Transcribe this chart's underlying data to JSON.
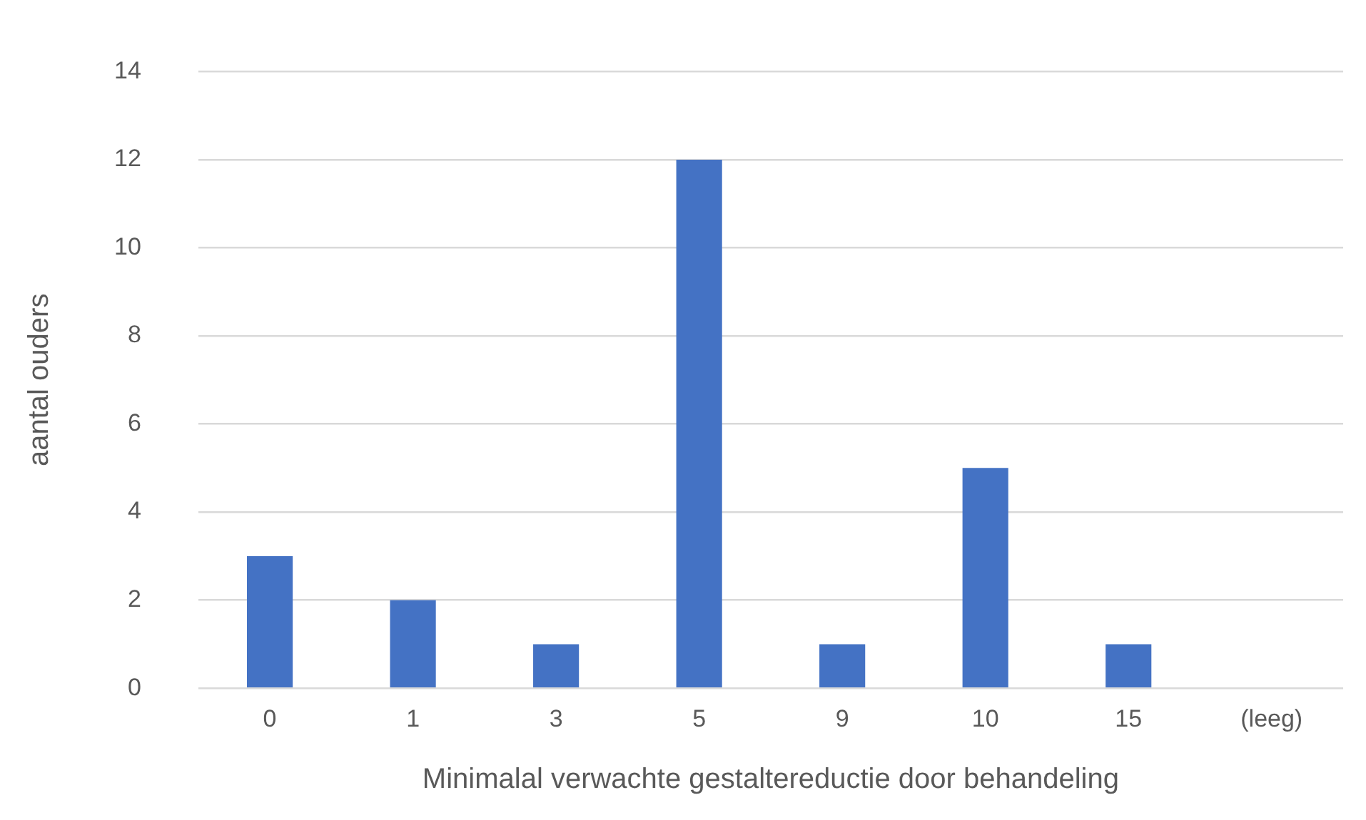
{
  "chart_data": {
    "type": "bar",
    "xlabel": "Minimalal verwachte gestaltereductie door behandeling",
    "ylabel": "aantal ouders",
    "categories": [
      "0",
      "1",
      "3",
      "5",
      "9",
      "10",
      "15",
      "(leeg)"
    ],
    "values": [
      3,
      2,
      1,
      12,
      1,
      5,
      1,
      null
    ],
    "color": "#4472c4",
    "ylim": [
      0,
      14
    ],
    "yticks": [
      0,
      2,
      4,
      6,
      8,
      10,
      12,
      14
    ],
    "grid": "y",
    "legend": false
  }
}
